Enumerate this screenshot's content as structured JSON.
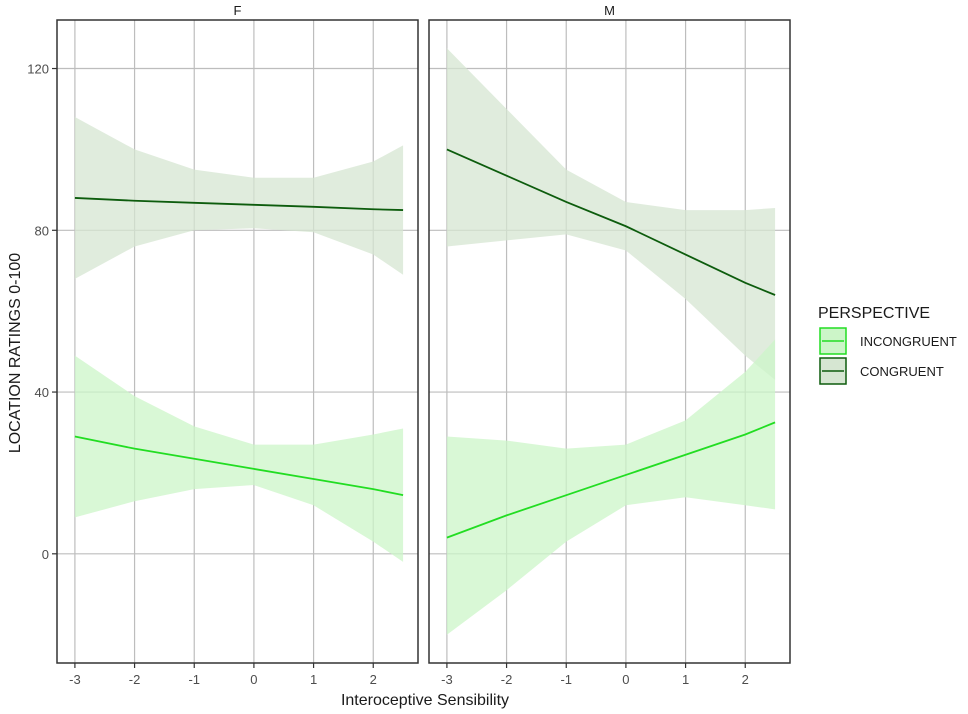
{
  "chart_data": {
    "type": "line",
    "xlabel": "Interoceptive Sensibility",
    "ylabel": "LOCATION RATINGS 0-100",
    "xlim": [
      -3.3,
      2.75
    ],
    "ylim": [
      -27,
      132
    ],
    "x_ticks": [
      -3,
      -2,
      -1,
      0,
      1,
      2
    ],
    "x_tick_labels": [
      "-3",
      "-2",
      "-1",
      "0",
      "1",
      "2"
    ],
    "y_ticks": [
      0,
      40,
      80,
      120
    ],
    "y_tick_labels": [
      "0",
      "40",
      "80",
      "120"
    ],
    "grid": true,
    "legend": {
      "title": "PERSPECTIVE",
      "placement": "right",
      "entries": [
        {
          "key": "incongruent",
          "label": "INCONGRUENT"
        },
        {
          "key": "congruent",
          "label": "CONGRUENT"
        }
      ]
    },
    "colors": {
      "incongruent_line": "#22dd22",
      "incongruent_band": "#ccf5c8",
      "congruent_line": "#0d5c0d",
      "congruent_band": "#d6e6d2",
      "grid": "#bdbdbd",
      "panel_border": "#333333"
    },
    "panels": [
      {
        "strip": "F",
        "series": [
          {
            "key": "congruent",
            "x": [
              -3,
              -2,
              -1,
              0,
              1,
              2,
              2.5
            ],
            "y": [
              88,
              87.3,
              86.8,
              86.3,
              85.8,
              85.2,
              85
            ],
            "lower": [
              68,
              76,
              80,
              80.5,
              79.5,
              74,
              69
            ],
            "upper": [
              108,
              100,
              95,
              93,
              93,
              97,
              101
            ]
          },
          {
            "key": "incongruent",
            "x": [
              -3,
              -2,
              -1,
              0,
              1,
              2,
              2.5
            ],
            "y": [
              29,
              26,
              23.5,
              21,
              18.5,
              16,
              14.5
            ],
            "lower": [
              9,
              13,
              16,
              17,
              12,
              3,
              -2
            ],
            "upper": [
              49,
              39,
              31.5,
              27,
              27,
              29.5,
              31
            ]
          }
        ]
      },
      {
        "strip": "M",
        "series": [
          {
            "key": "congruent",
            "x": [
              -3,
              -2,
              -1,
              0,
              1,
              2,
              2.5
            ],
            "y": [
              100,
              93.5,
              87,
              81,
              74,
              67,
              64
            ],
            "lower": [
              76,
              77.5,
              79,
              75,
              63,
              49,
              43
            ],
            "upper": [
              125,
              110,
              95,
              87,
              85,
              85,
              85.5
            ]
          },
          {
            "key": "incongruent",
            "x": [
              -3,
              -2,
              -1,
              0,
              1,
              2,
              2.5
            ],
            "y": [
              4,
              9.5,
              14.5,
              19.5,
              24.5,
              29.5,
              32.5
            ],
            "lower": [
              -20,
              -9,
              3,
              12,
              14,
              12,
              11
            ],
            "upper": [
              29,
              28,
              26,
              27,
              33,
              45,
              53
            ]
          }
        ]
      }
    ]
  }
}
